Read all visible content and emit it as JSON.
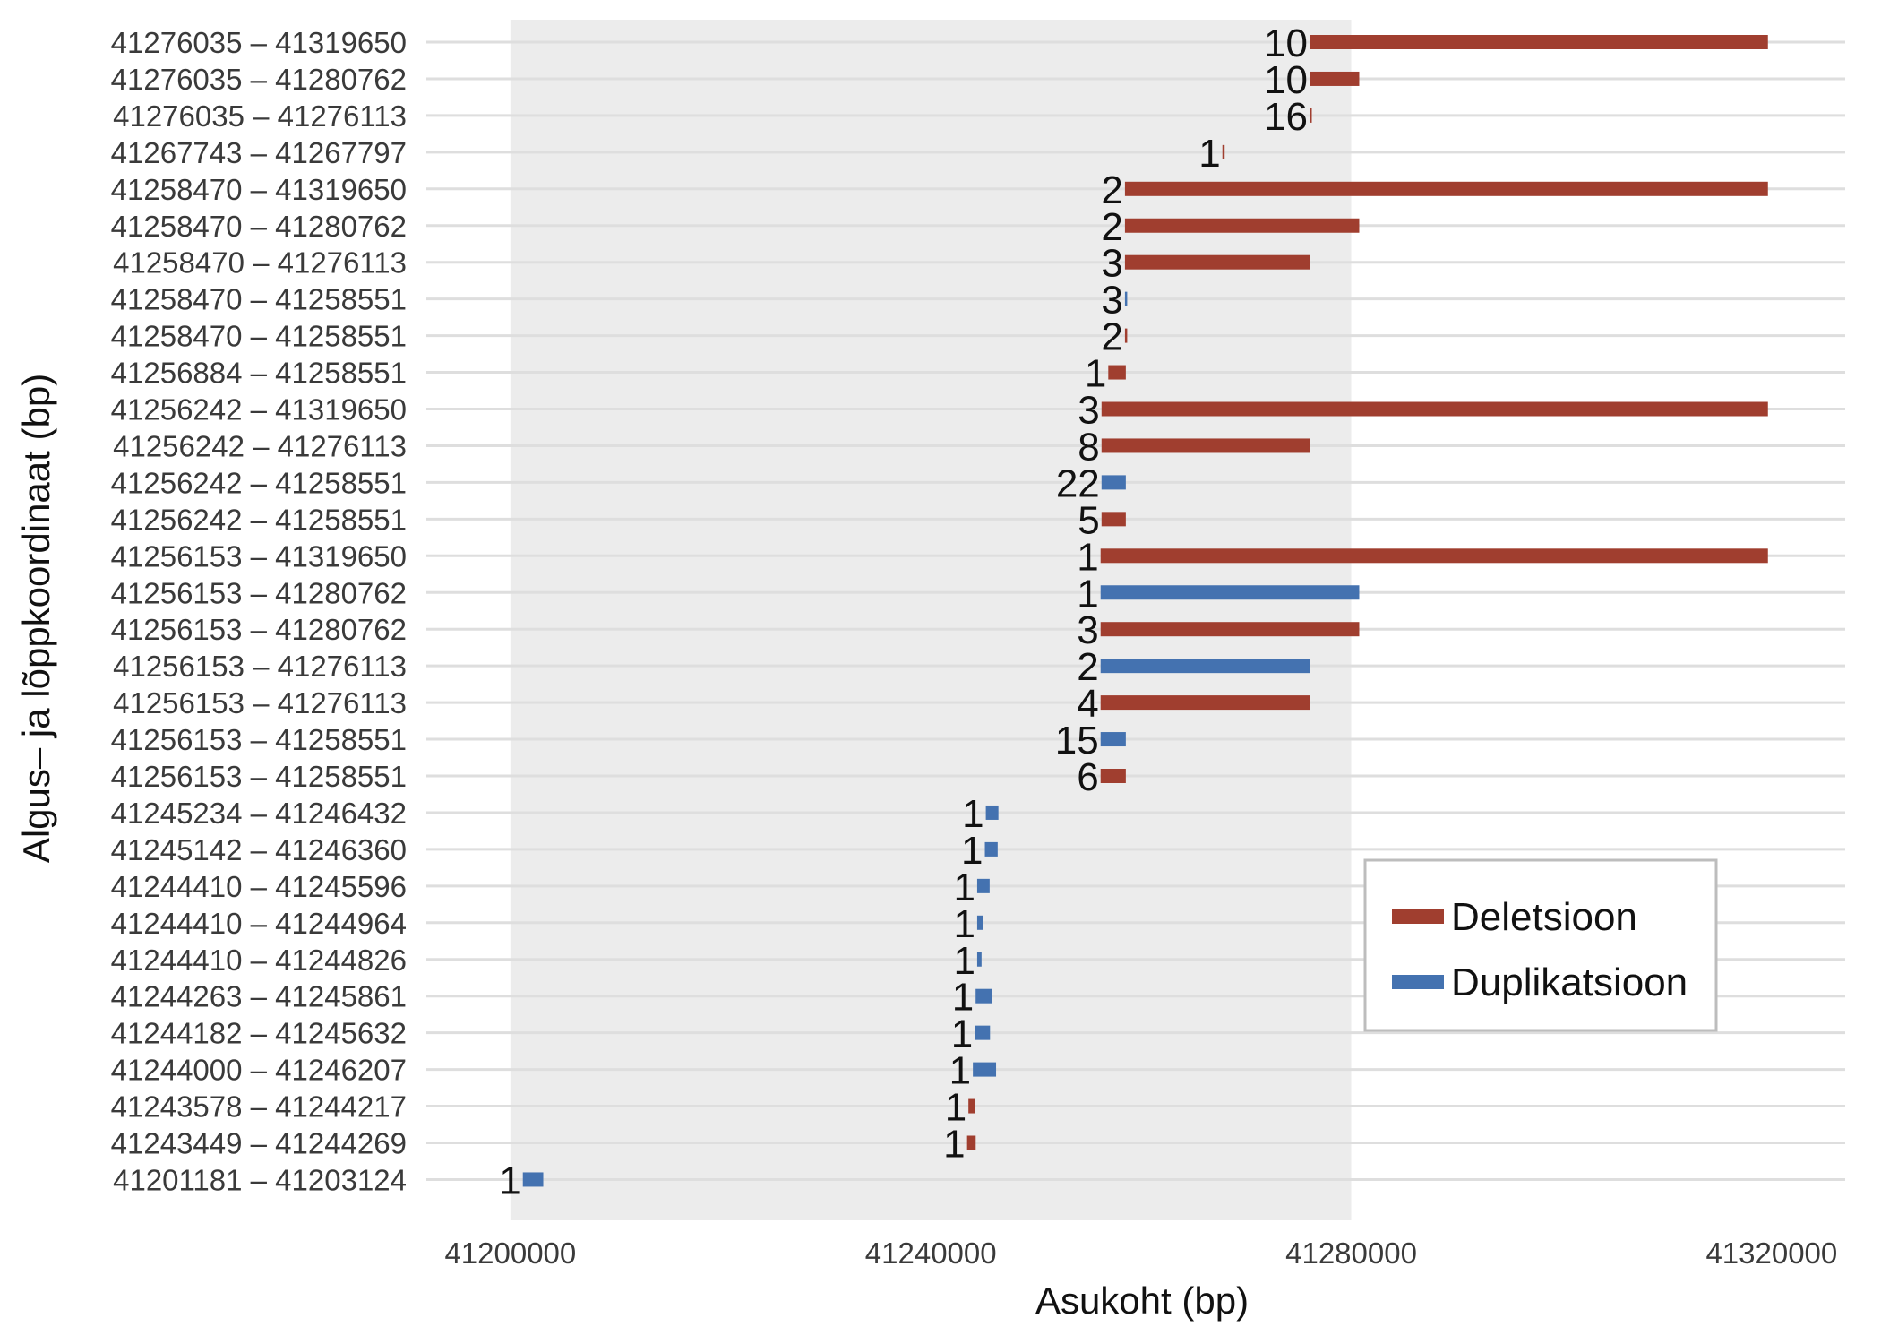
{
  "chart_data": {
    "type": "bar",
    "orientation": "horizontal-range",
    "xlabel": "Asukoht (bp)",
    "ylabel": "Algus– ja lõppkoordinaat (bp)",
    "xlim": [
      41192000,
      41327000
    ],
    "xticks": [
      "41200000",
      "41240000",
      "41280000",
      "41320000"
    ],
    "xtick_values": [
      41200000,
      41240000,
      41280000,
      41320000
    ],
    "shaded_region": [
      41200000,
      41280000
    ],
    "grid": "horizontal",
    "legend_position": "bottom-right",
    "legend": [
      {
        "name": "Deletsioon",
        "color": "#a03e2f"
      },
      {
        "name": "Duplikatsioon",
        "color": "#4472b0"
      }
    ],
    "rows": [
      {
        "label": "41276035 – 41319650",
        "start": 41276035,
        "end": 41319650,
        "type": "Deletsioon",
        "count": "10"
      },
      {
        "label": "41276035 – 41280762",
        "start": 41276035,
        "end": 41280762,
        "type": "Deletsioon",
        "count": "10"
      },
      {
        "label": "41276035 – 41276113",
        "start": 41276035,
        "end": 41276113,
        "type": "Deletsioon",
        "count": "16"
      },
      {
        "label": "41267743 – 41267797",
        "start": 41267743,
        "end": 41267797,
        "type": "Deletsioon",
        "count": "1"
      },
      {
        "label": "41258470 – 41319650",
        "start": 41258470,
        "end": 41319650,
        "type": "Deletsioon",
        "count": "2"
      },
      {
        "label": "41258470 – 41280762",
        "start": 41258470,
        "end": 41280762,
        "type": "Deletsioon",
        "count": "2"
      },
      {
        "label": "41258470 – 41276113",
        "start": 41258470,
        "end": 41276113,
        "type": "Deletsioon",
        "count": "3"
      },
      {
        "label": "41258470 – 41258551",
        "start": 41258470,
        "end": 41258551,
        "type": "Duplikatsioon",
        "count": "3"
      },
      {
        "label": "41258470 – 41258551",
        "start": 41258470,
        "end": 41258551,
        "type": "Deletsioon",
        "count": "2"
      },
      {
        "label": "41256884 – 41258551",
        "start": 41256884,
        "end": 41258551,
        "type": "Deletsioon",
        "count": "1"
      },
      {
        "label": "41256242 – 41319650",
        "start": 41256242,
        "end": 41319650,
        "type": "Deletsioon",
        "count": "3"
      },
      {
        "label": "41256242 – 41276113",
        "start": 41256242,
        "end": 41276113,
        "type": "Deletsioon",
        "count": "8"
      },
      {
        "label": "41256242 – 41258551",
        "start": 41256242,
        "end": 41258551,
        "type": "Duplikatsioon",
        "count": "22"
      },
      {
        "label": "41256242 – 41258551",
        "start": 41256242,
        "end": 41258551,
        "type": "Deletsioon",
        "count": "5"
      },
      {
        "label": "41256153 – 41319650",
        "start": 41256153,
        "end": 41319650,
        "type": "Deletsioon",
        "count": "1"
      },
      {
        "label": "41256153 – 41280762",
        "start": 41256153,
        "end": 41280762,
        "type": "Duplikatsioon",
        "count": "1"
      },
      {
        "label": "41256153 – 41280762",
        "start": 41256153,
        "end": 41280762,
        "type": "Deletsioon",
        "count": "3"
      },
      {
        "label": "41256153 – 41276113",
        "start": 41256153,
        "end": 41276113,
        "type": "Duplikatsioon",
        "count": "2"
      },
      {
        "label": "41256153 – 41276113",
        "start": 41256153,
        "end": 41276113,
        "type": "Deletsioon",
        "count": "4"
      },
      {
        "label": "41256153 – 41258551",
        "start": 41256153,
        "end": 41258551,
        "type": "Duplikatsioon",
        "count": "15"
      },
      {
        "label": "41256153 – 41258551",
        "start": 41256153,
        "end": 41258551,
        "type": "Deletsioon",
        "count": "6"
      },
      {
        "label": "41245234 – 41246432",
        "start": 41245234,
        "end": 41246432,
        "type": "Duplikatsioon",
        "count": "1"
      },
      {
        "label": "41245142 – 41246360",
        "start": 41245142,
        "end": 41246360,
        "type": "Duplikatsioon",
        "count": "1"
      },
      {
        "label": "41244410 – 41245596",
        "start": 41244410,
        "end": 41245596,
        "type": "Duplikatsioon",
        "count": "1"
      },
      {
        "label": "41244410 – 41244964",
        "start": 41244410,
        "end": 41244964,
        "type": "Duplikatsioon",
        "count": "1"
      },
      {
        "label": "41244410 – 41244826",
        "start": 41244410,
        "end": 41244826,
        "type": "Duplikatsioon",
        "count": "1"
      },
      {
        "label": "41244263 – 41245861",
        "start": 41244263,
        "end": 41245861,
        "type": "Duplikatsioon",
        "count": "1"
      },
      {
        "label": "41244182 – 41245632",
        "start": 41244182,
        "end": 41245632,
        "type": "Duplikatsioon",
        "count": "1"
      },
      {
        "label": "41244000 – 41246207",
        "start": 41244000,
        "end": 41246207,
        "type": "Duplikatsioon",
        "count": "1"
      },
      {
        "label": "41243578 – 41244217",
        "start": 41243578,
        "end": 41244217,
        "type": "Deletsioon",
        "count": "1"
      },
      {
        "label": "41243449 – 41244269",
        "start": 41243449,
        "end": 41244269,
        "type": "Deletsioon",
        "count": "1"
      },
      {
        "label": "41201181 – 41203124",
        "start": 41201181,
        "end": 41203124,
        "type": "Duplikatsioon",
        "count": "1"
      }
    ]
  }
}
